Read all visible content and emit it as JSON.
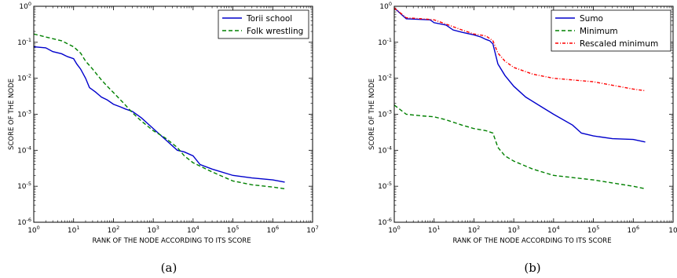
{
  "chart_data": [
    {
      "type": "line",
      "caption": "(a)",
      "xlabel": "RANK OF THE NODE ACCORDING TO ITS SCORE",
      "ylabel": "SCORE OF THE NODE",
      "xscale": "log",
      "yscale": "log",
      "xlim": [
        1,
        10000000
      ],
      "ylim": [
        1e-06,
        1
      ],
      "x_ticks": [
        {
          "base": "10",
          "exp": "0"
        },
        {
          "base": "10",
          "exp": "1"
        },
        {
          "base": "10",
          "exp": "2"
        },
        {
          "base": "10",
          "exp": "3"
        },
        {
          "base": "10",
          "exp": "4"
        },
        {
          "base": "10",
          "exp": "5"
        },
        {
          "base": "10",
          "exp": "6"
        },
        {
          "base": "10",
          "exp": "7"
        }
      ],
      "y_ticks": [
        {
          "base": "10",
          "exp": "-6"
        },
        {
          "base": "10",
          "exp": "-5"
        },
        {
          "base": "10",
          "exp": "-4"
        },
        {
          "base": "10",
          "exp": "-3"
        },
        {
          "base": "10",
          "exp": "-2"
        },
        {
          "base": "10",
          "exp": "-1"
        },
        {
          "base": "10",
          "exp": "0"
        }
      ],
      "grid": false,
      "legend_position": "top-right",
      "series": [
        {
          "name": "Torii school",
          "color": "#0000cc",
          "style": "solid",
          "points": [
            [
              1,
              0.075
            ],
            [
              2,
              0.07
            ],
            [
              3,
              0.055
            ],
            [
              5,
              0.048
            ],
            [
              7,
              0.04
            ],
            [
              10,
              0.035
            ],
            [
              12,
              0.025
            ],
            [
              15,
              0.018
            ],
            [
              20,
              0.01
            ],
            [
              25,
              0.0055
            ],
            [
              35,
              0.0042
            ],
            [
              50,
              0.003
            ],
            [
              70,
              0.0025
            ],
            [
              100,
              0.0019
            ],
            [
              150,
              0.0016
            ],
            [
              200,
              0.0014
            ],
            [
              300,
              0.0012
            ],
            [
              500,
              0.0008
            ],
            [
              1000,
              0.0004
            ],
            [
              2000,
              0.0002
            ],
            [
              4000,
              0.0001
            ],
            [
              6000,
              9e-05
            ],
            [
              10000,
              7e-05
            ],
            [
              15000,
              4e-05
            ],
            [
              30000,
              3e-05
            ],
            [
              100000,
              2e-05
            ],
            [
              300000,
              1.7e-05
            ],
            [
              1000000,
              1.5e-05
            ],
            [
              2000000,
              1.3e-05
            ]
          ]
        },
        {
          "name": "Folk wrestling",
          "color": "#008000",
          "style": "dashed",
          "points": [
            [
              1,
              0.17
            ],
            [
              2,
              0.14
            ],
            [
              5,
              0.11
            ],
            [
              10,
              0.075
            ],
            [
              15,
              0.05
            ],
            [
              20,
              0.03
            ],
            [
              30,
              0.018
            ],
            [
              50,
              0.009
            ],
            [
              70,
              0.006
            ],
            [
              100,
              0.004
            ],
            [
              200,
              0.0018
            ],
            [
              300,
              0.0011
            ],
            [
              500,
              0.00065
            ],
            [
              1000,
              0.00035
            ],
            [
              2000,
              0.00022
            ],
            [
              4000,
              0.00012
            ],
            [
              6000,
              7e-05
            ],
            [
              10000,
              4.5e-05
            ],
            [
              30000,
              2.5e-05
            ],
            [
              100000,
              1.4e-05
            ],
            [
              300000,
              1.1e-05
            ],
            [
              1000000,
              9.5e-06
            ],
            [
              2000000,
              8.5e-06
            ]
          ]
        }
      ]
    },
    {
      "type": "line",
      "caption": "(b)",
      "xlabel": "RANK OF THE NODE ACCORDING TO ITS SCORE",
      "ylabel": "SCORE OF THE NODE",
      "xscale": "log",
      "yscale": "log",
      "xlim": [
        1,
        10000000
      ],
      "ylim": [
        1e-06,
        1
      ],
      "x_ticks": [
        {
          "base": "10",
          "exp": "0"
        },
        {
          "base": "10",
          "exp": "1"
        },
        {
          "base": "10",
          "exp": "2"
        },
        {
          "base": "10",
          "exp": "3"
        },
        {
          "base": "10",
          "exp": "4"
        },
        {
          "base": "10",
          "exp": "5"
        },
        {
          "base": "10",
          "exp": "6"
        },
        {
          "base": "10",
          "exp": ""
        }
      ],
      "y_ticks": [
        {
          "base": "10",
          "exp": "-6"
        },
        {
          "base": "10",
          "exp": "-5"
        },
        {
          "base": "10",
          "exp": "-4"
        },
        {
          "base": "10",
          "exp": "-3"
        },
        {
          "base": "10",
          "exp": "-2"
        },
        {
          "base": "10",
          "exp": "-1"
        },
        {
          "base": "10",
          "exp": "0"
        }
      ],
      "grid": false,
      "legend_position": "top-right",
      "series": [
        {
          "name": "Sumo",
          "color": "#0000cc",
          "style": "solid",
          "points": [
            [
              1,
              0.9
            ],
            [
              2,
              0.45
            ],
            [
              3,
              0.44
            ],
            [
              5,
              0.43
            ],
            [
              8,
              0.42
            ],
            [
              10,
              0.35
            ],
            [
              20,
              0.3
            ],
            [
              30,
              0.22
            ],
            [
              50,
              0.19
            ],
            [
              100,
              0.16
            ],
            [
              150,
              0.14
            ],
            [
              200,
              0.12
            ],
            [
              250,
              0.11
            ],
            [
              300,
              0.09
            ],
            [
              400,
              0.025
            ],
            [
              600,
              0.012
            ],
            [
              1000,
              0.006
            ],
            [
              2000,
              0.003
            ],
            [
              5000,
              0.0016
            ],
            [
              10000,
              0.001
            ],
            [
              30000,
              0.0005
            ],
            [
              50000,
              0.0003
            ],
            [
              100000,
              0.00025
            ],
            [
              300000,
              0.00021
            ],
            [
              1000000,
              0.0002
            ],
            [
              2000000,
              0.00017
            ]
          ]
        },
        {
          "name": "Minimum",
          "color": "#008000",
          "style": "dashed",
          "points": [
            [
              1,
              0.0018
            ],
            [
              2,
              0.001
            ],
            [
              5,
              0.0009
            ],
            [
              10,
              0.00085
            ],
            [
              20,
              0.0007
            ],
            [
              50,
              0.0005
            ],
            [
              100,
              0.0004
            ],
            [
              200,
              0.00035
            ],
            [
              300,
              0.0003
            ],
            [
              400,
              0.00012
            ],
            [
              600,
              7e-05
            ],
            [
              1000,
              5e-05
            ],
            [
              3000,
              3e-05
            ],
            [
              10000,
              2e-05
            ],
            [
              100000,
              1.5e-05
            ],
            [
              1000000,
              1e-05
            ],
            [
              2000000,
              8.5e-06
            ]
          ]
        },
        {
          "name": "Rescaled minimum",
          "color": "#ff0000",
          "style": "dashdot",
          "points": [
            [
              1,
              0.9
            ],
            [
              2,
              0.48
            ],
            [
              5,
              0.45
            ],
            [
              10,
              0.42
            ],
            [
              20,
              0.32
            ],
            [
              50,
              0.22
            ],
            [
              100,
              0.17
            ],
            [
              200,
              0.15
            ],
            [
              300,
              0.11
            ],
            [
              400,
              0.05
            ],
            [
              600,
              0.03
            ],
            [
              1000,
              0.02
            ],
            [
              3000,
              0.013
            ],
            [
              10000,
              0.01
            ],
            [
              100000,
              0.008
            ],
            [
              1000000,
              0.005
            ],
            [
              2000000,
              0.0045
            ]
          ]
        }
      ]
    }
  ]
}
